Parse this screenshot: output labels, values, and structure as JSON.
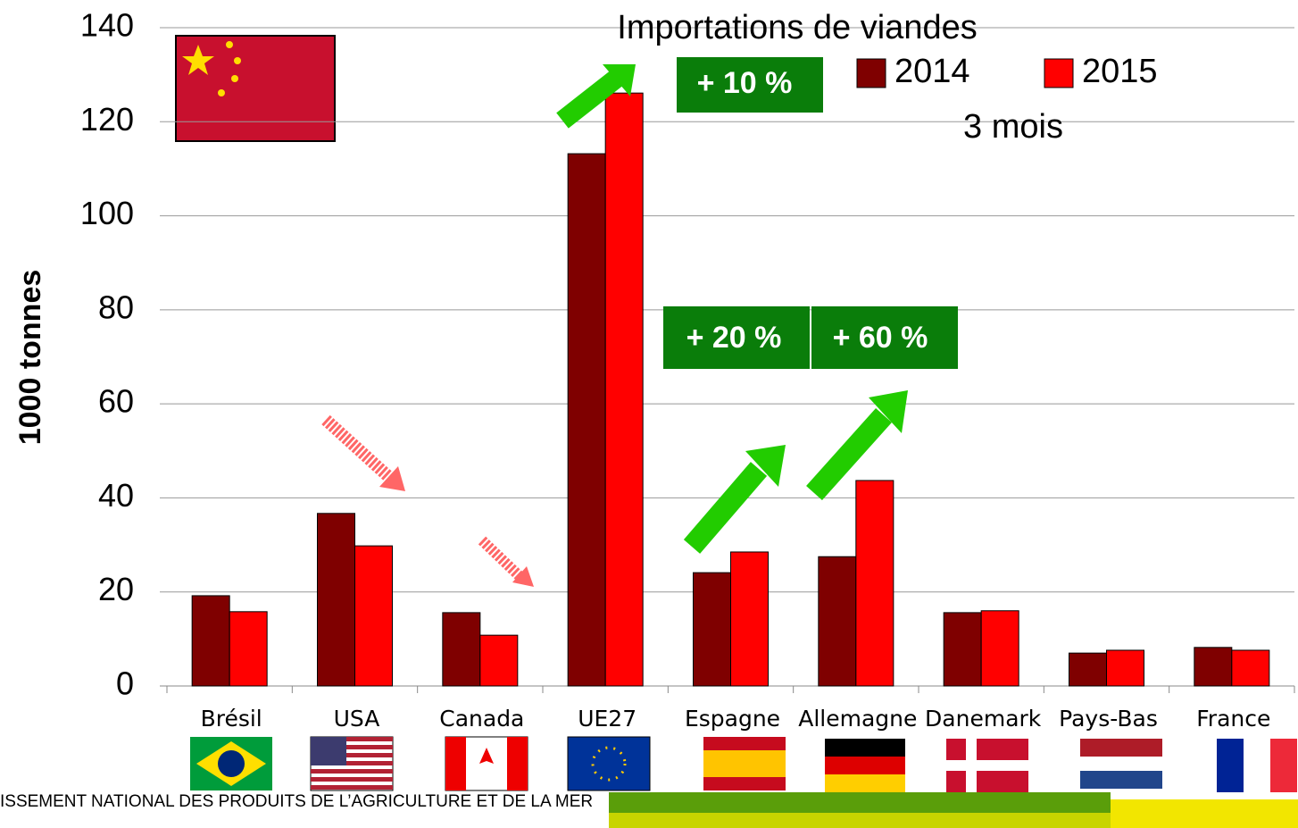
{
  "chart_data": {
    "type": "bar",
    "title": "Importations de viandes",
    "subtitle": "3 mois",
    "y_label": "1000 tonnes",
    "categories": [
      "Brésil",
      "USA",
      "Canada",
      "UE27",
      "Espagne",
      "Allemagne",
      "Danemark",
      "Pays-Bas",
      "France"
    ],
    "series": [
      {
        "name": "2014",
        "color": "#7f0000",
        "values": [
          19.2,
          36.7,
          15.6,
          113.2,
          24.1,
          27.5,
          15.6,
          7,
          8.2
        ]
      },
      {
        "name": "2015",
        "color": "#ff0000",
        "values": [
          15.8,
          29.8,
          10.8,
          126.1,
          28.5,
          43.7,
          16,
          7.6,
          7.6
        ]
      }
    ],
    "ylim": [
      0,
      140
    ],
    "yticks": [
      0,
      20,
      40,
      60,
      80,
      100,
      120,
      140
    ],
    "grid": true,
    "annotations": [
      "+ 10 %",
      "+ 20 %",
      "+ 60 %"
    ],
    "footer": "ISSEMENT NATIONAL DES PRODUITS DE L’AGRICULTURE ET DE LA MER"
  }
}
